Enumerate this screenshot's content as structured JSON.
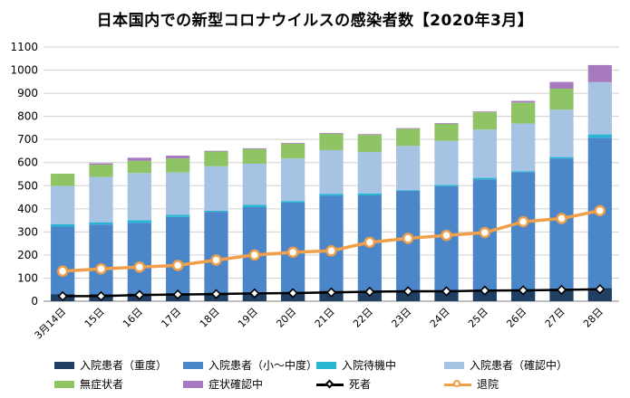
{
  "title": "日本国内での新型コロナウイルスの感染者数【2020年3月】",
  "chart_data": {
    "type": "bar",
    "stacked": true,
    "categories": [
      "3月14日",
      "15日",
      "16日",
      "17日",
      "18日",
      "19日",
      "20日",
      "21日",
      "22日",
      "23日",
      "24日",
      "25日",
      "26日",
      "27日",
      "28日"
    ],
    "ylim": [
      0,
      1100
    ],
    "yticks": [
      0,
      100,
      200,
      300,
      400,
      500,
      600,
      700,
      800,
      900,
      1000,
      1100
    ],
    "grid": true,
    "legend_position": "bottom",
    "bar_series": [
      {
        "name": "入院患者（重度）",
        "color": "#1f3f63",
        "values": [
          31,
          31,
          34,
          35,
          37,
          37,
          37,
          46,
          46,
          46,
          46,
          45,
          47,
          55,
          57
        ]
      },
      {
        "name": "入院患者（小～中度）",
        "color": "#4a86c8",
        "values": [
          292,
          301,
          305,
          330,
          350,
          370,
          390,
          410,
          412,
          432,
          452,
          482,
          512,
          563,
          650
        ]
      },
      {
        "name": "入院待機中",
        "color": "#29b6d4",
        "values": [
          10,
          10,
          12,
          10,
          5,
          10,
          7,
          9,
          9,
          3,
          6,
          7,
          4,
          6,
          15
        ]
      },
      {
        "name": "入院患者（確認中）",
        "color": "#a6c3e3",
        "values": [
          166,
          196,
          204,
          182,
          192,
          178,
          184,
          189,
          179,
          191,
          190,
          209,
          206,
          205,
          226
        ]
      },
      {
        "name": "無症状者",
        "color": "#8fc465",
        "values": [
          53,
          53,
          53,
          61,
          64,
          64,
          64,
          71,
          74,
          74,
          74,
          75,
          91,
          91,
          0
        ]
      },
      {
        "name": "症状確認中",
        "color": "#a77ac0",
        "values": [
          0,
          6,
          13,
          12,
          3,
          3,
          3,
          3,
          3,
          3,
          3,
          3,
          7,
          29,
          74
        ]
      }
    ],
    "line_series": [
      {
        "name": "死者",
        "color": "#000000",
        "marker": "diamond",
        "values": [
          22,
          22,
          27,
          29,
          31,
          34,
          35,
          38,
          41,
          43,
          43,
          46,
          47,
          49,
          52
        ]
      },
      {
        "name": "退院",
        "color": "#f0a04b",
        "marker": "circle",
        "values": [
          130,
          140,
          148,
          155,
          178,
          200,
          212,
          218,
          255,
          272,
          285,
          297,
          344,
          358,
          392
        ]
      }
    ]
  },
  "legend": {
    "rows": [
      [
        {
          "label": "入院患者（重度）",
          "color": "#1f3f63",
          "kind": "box"
        },
        {
          "label": "入院患者（小～中度）",
          "color": "#4a86c8",
          "kind": "box"
        },
        {
          "label": "入院待機中",
          "color": "#29b6d4",
          "kind": "box"
        },
        {
          "label": "入院患者（確認中）",
          "color": "#a6c3e3",
          "kind": "box"
        }
      ],
      [
        {
          "label": "無症状者",
          "color": "#8fc465",
          "kind": "box"
        },
        {
          "label": "症状確認中",
          "color": "#a77ac0",
          "kind": "box"
        },
        {
          "label": "死者",
          "color": "#000000",
          "kind": "line-diamond"
        },
        {
          "label": "退院",
          "color": "#f0a04b",
          "kind": "line-circle"
        }
      ]
    ]
  }
}
